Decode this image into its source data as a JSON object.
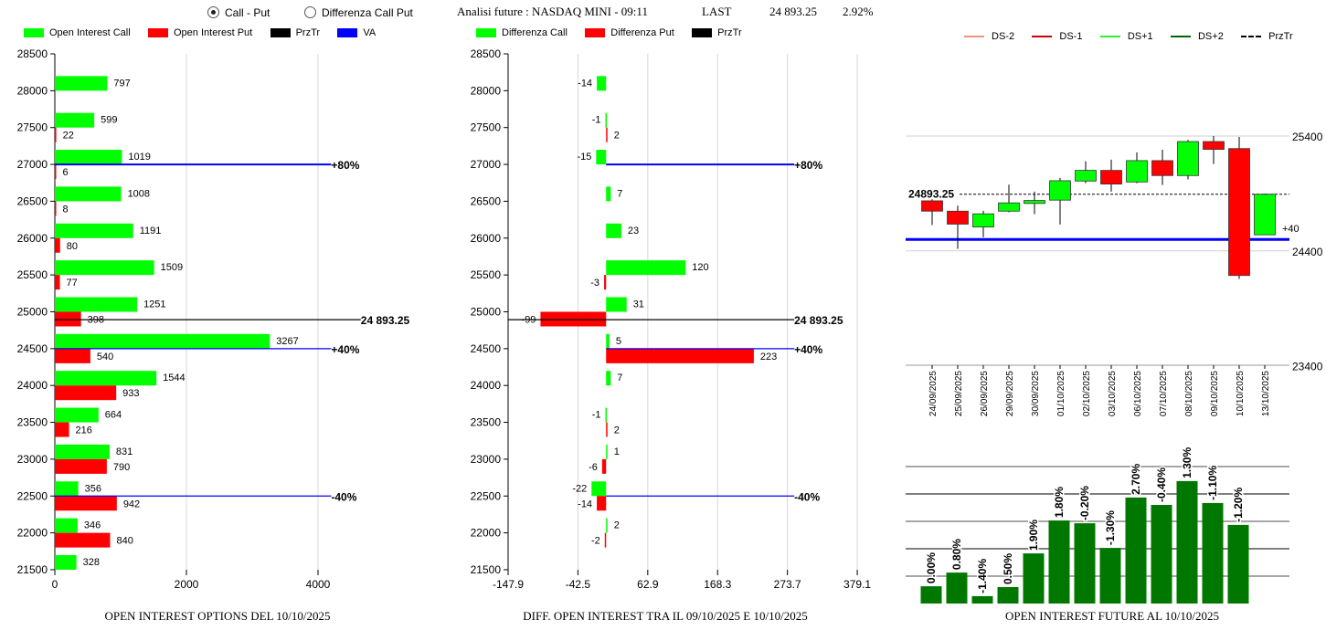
{
  "header": {
    "mode_options": [
      {
        "label": "Call - Put",
        "selected": true
      },
      {
        "label": "Differenza Call Put",
        "selected": false
      }
    ],
    "analysis_label": "Analisi future : NASDAQ MINI - 09:11",
    "last_label": "LAST",
    "last_value": "24 893.25",
    "change": "2.92%"
  },
  "colors": {
    "call": "#00ff00",
    "put": "#ff0000",
    "prztr": "#000000",
    "va": "#0000ff",
    "ds_minus2": "#e9967a",
    "ds_minus1": "#cc0000",
    "ds_plus1": "#33ee33",
    "ds_plus2": "#006400",
    "future_bar": "#007800"
  },
  "chart_data": [
    {
      "type": "bar",
      "orientation": "horizontal",
      "title": "OPEN INTEREST OPTIONS DEL 10/10/2025",
      "legend": [
        "Open Interest Call",
        "Open Interest Put",
        "PrzTr",
        "VA"
      ],
      "legend_placement": "top",
      "categories": [
        28000,
        27500,
        27000,
        26500,
        26000,
        25500,
        25000,
        24500,
        24000,
        23500,
        23000,
        22500,
        22000,
        21500
      ],
      "y_ticks": [
        "28500",
        "28000",
        "27500",
        "27000",
        "26500",
        "26000",
        "25500",
        "25000",
        "24500",
        "24000",
        "23500",
        "23000",
        "22500",
        "22000",
        "21500"
      ],
      "x_ticks": [
        "0",
        "2000",
        "4000"
      ],
      "xlim": [
        0,
        6000
      ],
      "grid": true,
      "series": [
        {
          "name": "Open Interest Call",
          "values": [
            797,
            599,
            1019,
            1008,
            1191,
            1509,
            1251,
            3267,
            1544,
            664,
            831,
            356,
            346,
            328
          ]
        },
        {
          "name": "Open Interest Put",
          "values": [
            null,
            22,
            6,
            8,
            80,
            77,
            398,
            540,
            933,
            216,
            790,
            942,
            840,
            null
          ]
        }
      ],
      "reference_lines": [
        {
          "level": 27000,
          "label": "+80%",
          "kind": "va",
          "end": 4200
        },
        {
          "level": 24893.25,
          "label": "24 893.25",
          "kind": "prztr",
          "end": 4650
        },
        {
          "level": 24500,
          "label": "+40%",
          "kind": "va",
          "end": 4200
        },
        {
          "level": 22500,
          "label": "-40%",
          "kind": "va",
          "end": 4200
        }
      ]
    },
    {
      "type": "bar",
      "orientation": "horizontal",
      "title": "DIFF. OPEN INTEREST TRA IL 09/10/2025 E 10/10/2025",
      "legend": [
        "Differenza Call",
        "Differenza Put",
        "PrzTr"
      ],
      "legend_placement": "top",
      "categories": [
        28000,
        27500,
        27000,
        26500,
        26000,
        25500,
        25000,
        24500,
        24000,
        23500,
        23000,
        22500,
        22000,
        21500
      ],
      "y_ticks": [
        "28500",
        "28000",
        "27500",
        "27000",
        "26500",
        "26000",
        "25500",
        "25000",
        "24500",
        "24000",
        "23500",
        "23000",
        "22500",
        "22000",
        "21500"
      ],
      "x_ticks": [
        "-147.9",
        "-42.5",
        "62.9",
        "168.3",
        "273.7",
        "379.1"
      ],
      "xlim": [
        -147.9,
        379.1
      ],
      "grid": true,
      "series": [
        {
          "name": "Differenza Call",
          "values": [
            -14,
            -1,
            -15,
            7,
            23,
            120,
            31,
            5,
            7,
            -1,
            1,
            -22,
            2,
            null
          ]
        },
        {
          "name": "Differenza Put",
          "values": [
            null,
            2,
            null,
            null,
            null,
            -3,
            -99,
            223,
            null,
            2,
            -6,
            -14,
            -2,
            null
          ]
        }
      ],
      "reference_lines": [
        {
          "level": 27000,
          "label": "+80%",
          "kind": "va",
          "start": 0,
          "end": 284
        },
        {
          "level": 24893.25,
          "label": "24 893.25",
          "kind": "prztr",
          "start": -147.9,
          "end": 284
        },
        {
          "level": 24500,
          "label": "+40%",
          "kind": "va",
          "start": 0,
          "end": 284
        },
        {
          "level": 22500,
          "label": "-40%",
          "kind": "va",
          "start": 0,
          "end": 284
        }
      ]
    },
    {
      "type": "candlestick",
      "legend": [
        "DS-2",
        "DS-1",
        "DS+1",
        "DS+2",
        "PrzTr"
      ],
      "legend_placement": "top",
      "y_ticks": [
        "25400",
        "24400",
        "23400"
      ],
      "ylim": [
        23400,
        25400
      ],
      "grid": true,
      "prztr": 24893.25,
      "prztr_label": "24893.25",
      "va_level": 24500,
      "annotation": "+40",
      "dates": [
        "24/09/2025",
        "25/09/2025",
        "26/09/2025",
        "29/09/2025",
        "30/09/2025",
        "01/10/2025",
        "02/10/2025",
        "03/10/2025",
        "06/10/2025",
        "07/10/2025",
        "08/10/2025",
        "09/10/2025",
        "10/10/2025",
        "13/10/2025"
      ],
      "ohlc": [
        [
          24836,
          24850,
          24625,
          24746
        ],
        [
          24746,
          24794,
          24418,
          24633
        ],
        [
          24608,
          24749,
          24519,
          24723
        ],
        [
          24746,
          24977,
          24736,
          24818
        ],
        [
          24813,
          24916,
          24720,
          24839
        ],
        [
          24842,
          25035,
          24630,
          25011
        ],
        [
          25008,
          25180,
          24990,
          25101
        ],
        [
          25101,
          25194,
          24916,
          24982
        ],
        [
          25000,
          25257,
          24990,
          25186
        ],
        [
          25186,
          25281,
          24974,
          25056
        ],
        [
          25056,
          25366,
          25022,
          25352
        ],
        [
          25352,
          25400,
          25157,
          25284
        ],
        [
          25291,
          25392,
          24156,
          24186
        ],
        [
          24540,
          24900,
          24540,
          24893
        ]
      ]
    },
    {
      "type": "bar",
      "title": "OPEN INTEREST FUTURE AL 10/10/2025",
      "categories": [
        "24/09/2025",
        "25/09/2025",
        "26/09/2025",
        "29/09/2025",
        "30/09/2025",
        "01/10/2025",
        "02/10/2025",
        "03/10/2025",
        "06/10/2025",
        "07/10/2025",
        "08/10/2025",
        "09/10/2025",
        "10/10/2025"
      ],
      "values_relative": [
        0.63,
        1.13,
        0.27,
        0.6,
        1.83,
        3.03,
        2.93,
        2.03,
        3.87,
        3.6,
        4.47,
        3.67,
        2.87
      ],
      "data_labels": [
        "0.00%",
        "0.80%",
        "-1.40%",
        "0.50%",
        "1.90%",
        "1.80%",
        "-0.20%",
        "-1.30%",
        "2.70%",
        "-0.40%",
        "1.30%",
        "-1.10%",
        "-1.20%"
      ],
      "ylim": [
        0,
        5
      ],
      "grid": true
    }
  ]
}
